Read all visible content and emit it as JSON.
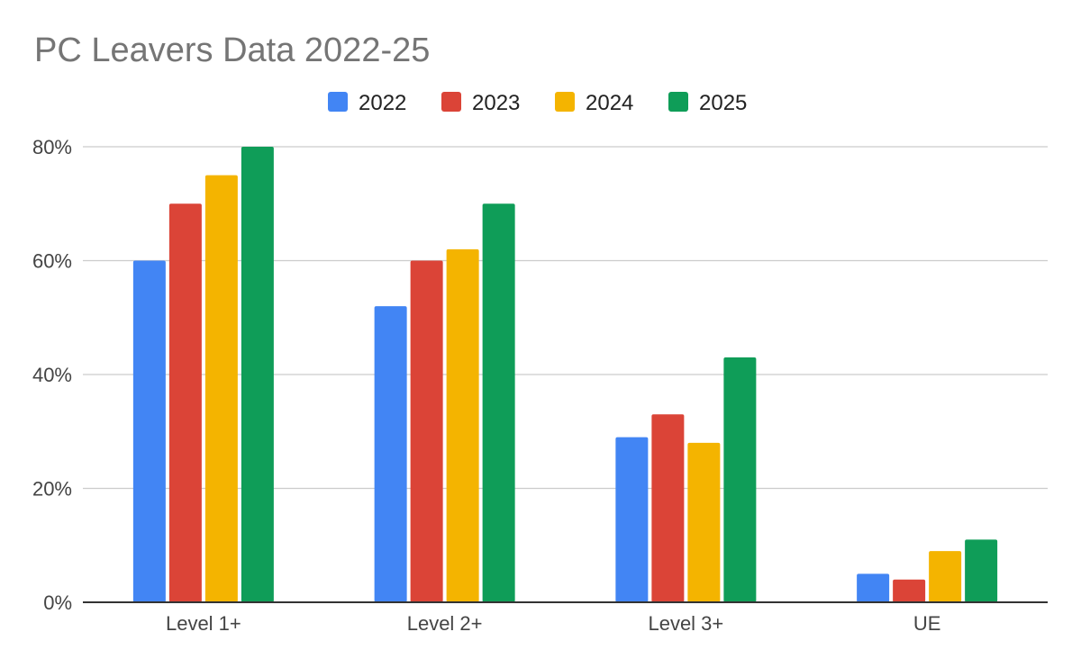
{
  "chart_data": {
    "type": "bar",
    "title": "PC Leavers Data 2022-25",
    "xlabel": "",
    "ylabel": "",
    "categories": [
      "Level 1+",
      "Level 2+",
      "Level 3+",
      "UE"
    ],
    "series": [
      {
        "name": "2022",
        "color": "#4285F4",
        "values": [
          60,
          52,
          29,
          5
        ]
      },
      {
        "name": "2023",
        "color": "#DB4437",
        "values": [
          70,
          60,
          33,
          4
        ]
      },
      {
        "name": "2024",
        "color": "#F4B400",
        "values": [
          75,
          62,
          28,
          9
        ]
      },
      {
        "name": "2025",
        "color": "#0F9D58",
        "values": [
          80,
          70,
          43,
          11
        ]
      }
    ],
    "ylim": [
      0,
      80
    ],
    "yticks": [
      0,
      20,
      40,
      60,
      80
    ],
    "ytick_labels": [
      "0%",
      "20%",
      "40%",
      "60%",
      "80%"
    ],
    "grid": true,
    "legend_position": "top-center"
  }
}
